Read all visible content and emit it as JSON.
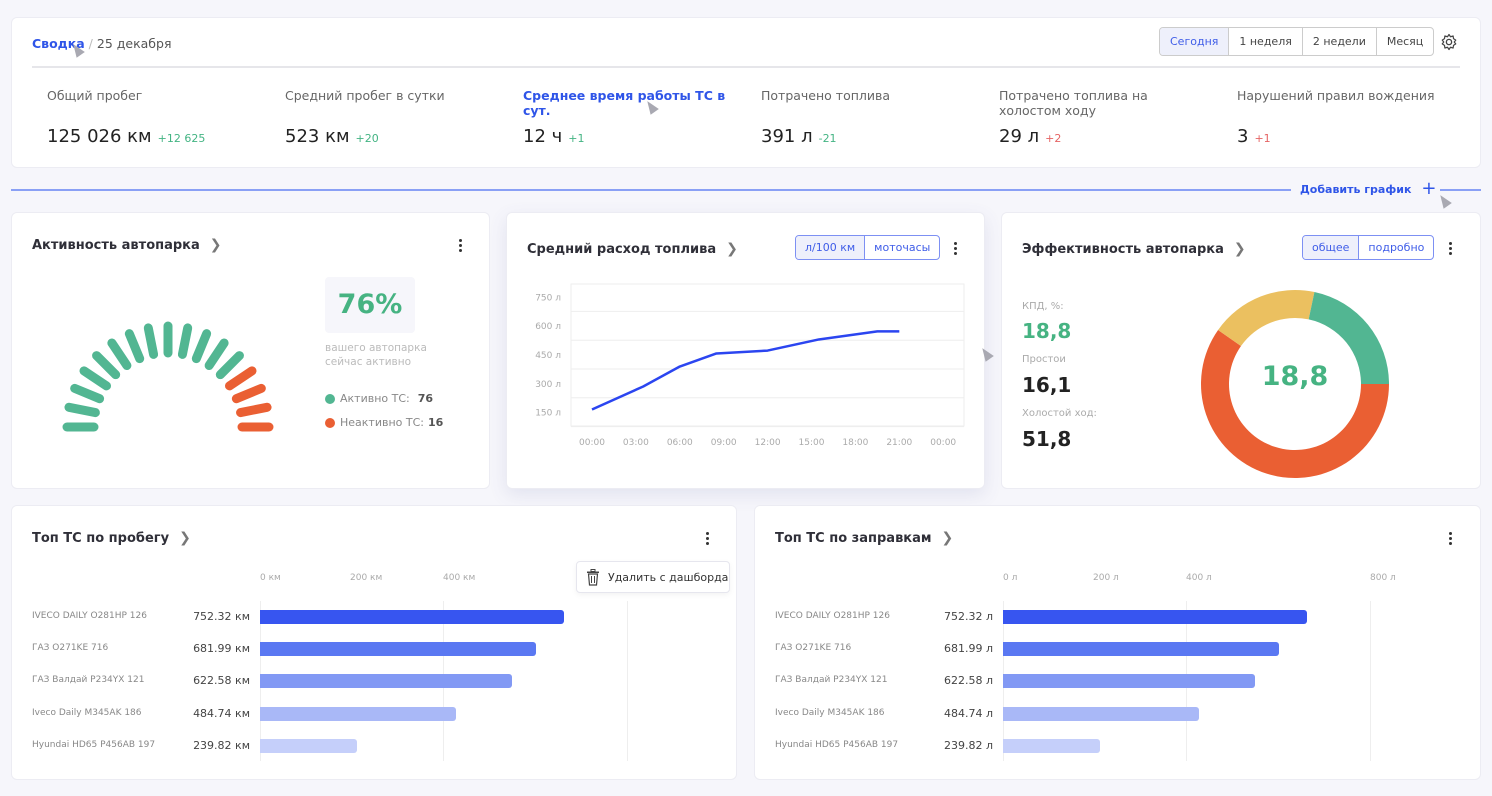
{
  "header": {
    "breadcrumb_root": "Сводка",
    "breadcrumb_sep": "/",
    "breadcrumb_date": "25 декабря",
    "periods": [
      "Сегодня",
      "1 неделя",
      "2 недели",
      "Месяц"
    ],
    "active_period": "Сегодня",
    "settings_icon": "gear-icon"
  },
  "kpis": [
    {
      "label": "Общий пробег",
      "value": "125 026 км",
      "delta": "+12 625",
      "trend": "positive"
    },
    {
      "label": "Средний пробег в сутки",
      "value": "523 км",
      "delta": "+20",
      "trend": "positive"
    },
    {
      "label": "Среднее время работы ТС в сут.",
      "value": "12 ч",
      "delta": "+1",
      "trend": "positive",
      "highlighted": true
    },
    {
      "label": "Потрачено топлива",
      "value": "391 л",
      "delta": "-21",
      "trend": "positive"
    },
    {
      "label": "Потрачено топлива на холостом ходу",
      "value": "29 л",
      "delta": "+2",
      "trend": "negative"
    },
    {
      "label": "Нарушений правил вождения",
      "value": "3",
      "delta": "+1",
      "trend": "negative"
    }
  ],
  "add_chart": {
    "label": "Добавить график",
    "icon": "plus-icon"
  },
  "activity": {
    "title": "Активность автопарка",
    "percent": "76%",
    "caption": "вашего автопарка сейчас активно",
    "active_label": "Активно ТС:",
    "active_value": "76",
    "inactive_label": "Неактивно ТС:",
    "inactive_value": "16",
    "gauge_segments_total": 17,
    "gauge_segments_active": 13,
    "colors": {
      "active": "#52b692",
      "inactive": "#ea5f33"
    }
  },
  "fuel": {
    "title": "Средний расход топлива",
    "toggle": [
      "л/100 км",
      "моточасы"
    ]
  },
  "efficiency": {
    "title": "Эффективность автопарка",
    "toggle": [
      "общее",
      "подробно"
    ],
    "kpd_label": "КПД, %:",
    "kpd_value": "18,8",
    "idle_label": "Простои",
    "idle_value": "16,1",
    "idle_run_label": "Холостой ход:",
    "idle_run_value": "51,8",
    "center": "18,8"
  },
  "top_mileage": {
    "title": "Топ ТС по пробегу",
    "menu_item": "Удалить с дашборда"
  },
  "top_refuel": {
    "title": "Топ ТС по заправкам"
  },
  "chart_data": [
    {
      "type": "line",
      "ylim": [
        80,
        820
      ],
      "y_ticks": [
        "750 л",
        "600 л",
        "450 л",
        "300 л",
        "150 л"
      ],
      "x_ticks": [
        "00:00",
        "03:00",
        "06:00",
        "09:00",
        "12:00",
        "15:00",
        "18:00",
        "21:00",
        "00:00"
      ],
      "x_hours": [
        0,
        3.5,
        6,
        8.5,
        12,
        15.5,
        19.5,
        21
      ],
      "values": [
        166,
        286,
        390,
        458,
        473,
        531,
        573,
        573
      ],
      "color": "#2b45f0",
      "grid": true
    },
    {
      "type": "pie",
      "donut": true,
      "labels": [
        "КПД",
        "Простои",
        "Холостой ход"
      ],
      "values": [
        18.8,
        16.1,
        51.8
      ],
      "colors": [
        "#52b692",
        "#ebc060",
        "#ea5f33"
      ]
    },
    {
      "type": "bar",
      "orientation": "horizontal",
      "x_ticks": [
        "0 км",
        "200 км",
        "400 км"
      ],
      "categories": [
        "IVECO DAILY O281HP 126",
        "ГАЗ O271KE 716",
        "ГАЗ Валдай P234YX 121",
        "Iveco Daily M345AK 186",
        "Hyundai HD65 P456AB 197"
      ],
      "values": [
        752.32,
        681.99,
        622.58,
        484.74,
        239.82
      ],
      "value_labels": [
        "752.32 км",
        "681.99 км",
        "622.58 км",
        "484.74 км",
        "239.82 км"
      ]
    },
    {
      "type": "bar",
      "orientation": "horizontal",
      "x_ticks": [
        "0 л",
        "200 л",
        "400 л",
        "800 л"
      ],
      "categories": [
        "IVECO DAILY O281HP 126",
        "ГАЗ O271KE 716",
        "ГАЗ Валдай P234YX 121",
        "Iveco Daily M345AK 186",
        "Hyundai HD65 P456AB 197"
      ],
      "values": [
        752.32,
        681.99,
        622.58,
        484.74,
        239.82
      ],
      "value_labels": [
        "752.32 л",
        "681.99 л",
        "622.58 л",
        "484.74 л",
        "239.82 л"
      ]
    }
  ],
  "bar_colors": [
    "#3755f0",
    "#5a78f2",
    "#8299f4",
    "#a9b8f7",
    "#c5cffa"
  ]
}
